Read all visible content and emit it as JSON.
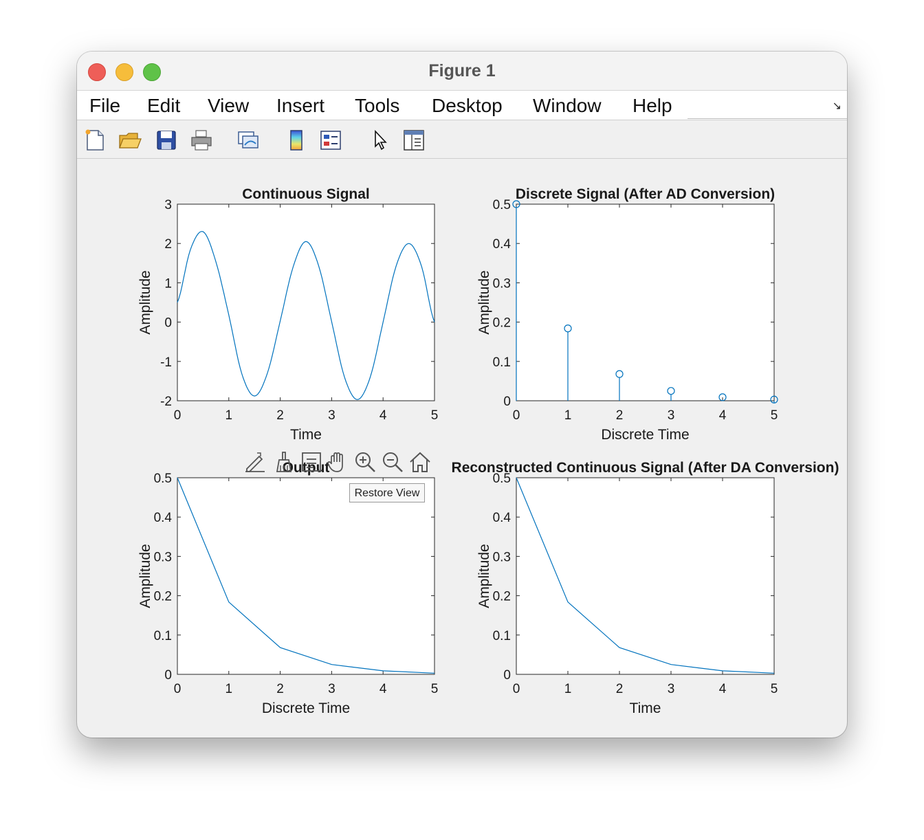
{
  "window": {
    "title": "Figure 1"
  },
  "menu": {
    "items": [
      "File",
      "Edit",
      "View",
      "Insert",
      "Tools",
      "Desktop",
      "Window",
      "Help"
    ]
  },
  "toolbar": {
    "icons": [
      "new-figure-icon",
      "open-file-icon",
      "save-icon",
      "print-icon",
      "link-plot-icon",
      "colorbar-icon",
      "legend-icon",
      "pointer-icon",
      "property-inspector-icon"
    ]
  },
  "axes_toolbar": {
    "icons": [
      "data-tips-icon",
      "brush-icon",
      "datatip-list-icon",
      "pan-hand-icon",
      "zoom-in-icon",
      "zoom-out-icon",
      "home-icon"
    ],
    "restore_label": "Restore View"
  },
  "colors": {
    "line": "#0072bd",
    "axes_bg": "#ffffff",
    "figure_bg": "#f0f0f0"
  },
  "chart_data": [
    {
      "type": "line",
      "title": "Continuous Signal",
      "xlabel": "Time",
      "ylabel": "Amplitude",
      "xlim": [
        0,
        5
      ],
      "ylim": [
        -2,
        3
      ],
      "xticks": [
        "0",
        "1",
        "2",
        "3",
        "4",
        "5"
      ],
      "yticks": [
        "-2",
        "-1",
        "0",
        "1",
        "2",
        "3"
      ],
      "series": [
        {
          "x": [
            0,
            0.25,
            0.5,
            0.75,
            1.0,
            1.25,
            1.5,
            1.75,
            2.0,
            2.25,
            2.5,
            2.75,
            3.0,
            3.25,
            3.5,
            3.75,
            4.0,
            4.25,
            4.5,
            4.75,
            5.0
          ],
          "values": [
            0.5,
            1.83,
            2.3,
            1.53,
            0.18,
            -1.3,
            -1.88,
            -1.3,
            0.03,
            1.4,
            2.05,
            1.42,
            0.01,
            -1.4,
            -1.97,
            -1.4,
            0.0,
            1.41,
            2.0,
            1.41,
            0.0
          ]
        }
      ]
    },
    {
      "type": "stem",
      "title": "Discrete Signal (After AD Conversion)",
      "xlabel": "Discrete Time",
      "ylabel": "Amplitude",
      "xlim": [
        0,
        5
      ],
      "ylim": [
        0,
        0.5
      ],
      "xticks": [
        "0",
        "1",
        "2",
        "3",
        "4",
        "5"
      ],
      "yticks": [
        "0",
        "0.1",
        "0.2",
        "0.3",
        "0.4",
        "0.5"
      ],
      "series": [
        {
          "x": [
            0,
            1,
            2,
            3,
            4,
            5
          ],
          "values": [
            0.5,
            0.184,
            0.068,
            0.025,
            0.009,
            0.003
          ]
        }
      ]
    },
    {
      "type": "line",
      "title": "Output",
      "xlabel": "Discrete Time",
      "ylabel": "Amplitude",
      "xlim": [
        0,
        5
      ],
      "ylim": [
        0,
        0.5
      ],
      "xticks": [
        "0",
        "1",
        "2",
        "3",
        "4",
        "5"
      ],
      "yticks": [
        "0",
        "0.1",
        "0.2",
        "0.3",
        "0.4",
        "0.5"
      ],
      "series": [
        {
          "x": [
            0,
            1,
            2,
            3,
            4,
            5
          ],
          "values": [
            0.5,
            0.184,
            0.068,
            0.025,
            0.009,
            0.003
          ]
        }
      ]
    },
    {
      "type": "line",
      "title": "Reconstructed Continuous Signal (After DA Conversion)",
      "xlabel": "Time",
      "ylabel": "Amplitude",
      "xlim": [
        0,
        5
      ],
      "ylim": [
        0,
        0.5
      ],
      "xticks": [
        "0",
        "1",
        "2",
        "3",
        "4",
        "5"
      ],
      "yticks": [
        "0",
        "0.1",
        "0.2",
        "0.3",
        "0.4",
        "0.5"
      ],
      "series": [
        {
          "x": [
            0,
            1,
            2,
            3,
            4,
            5
          ],
          "values": [
            0.5,
            0.184,
            0.068,
            0.025,
            0.009,
            0.003
          ]
        }
      ]
    }
  ]
}
